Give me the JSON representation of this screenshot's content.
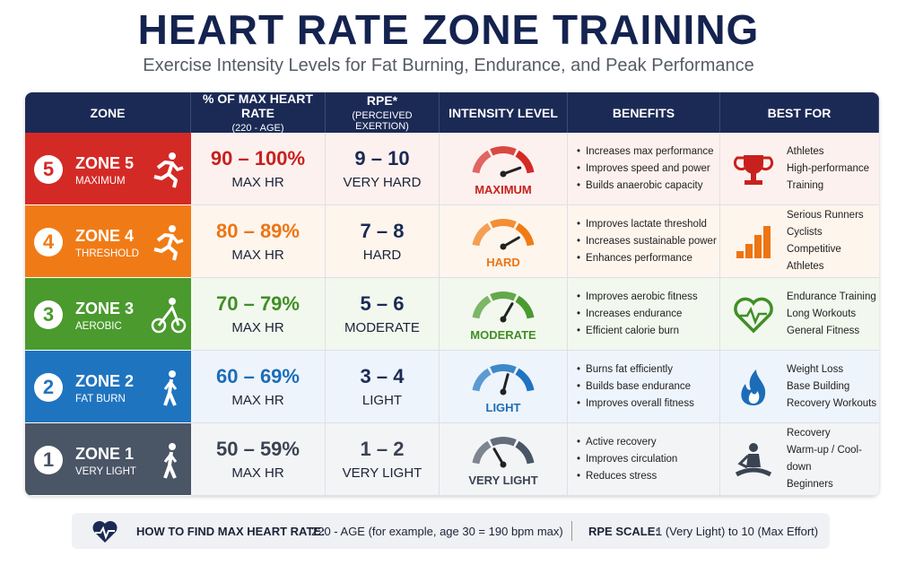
{
  "header": {
    "title": "HEART RATE ZONE TRAINING",
    "subtitle": "Exercise Intensity Levels for Fat Burning, Endurance, and Peak Performance"
  },
  "table": {
    "headers": [
      {
        "title": "ZONE"
      },
      {
        "title": "% OF MAX HEART RATE",
        "sub": "(220 - AGE)"
      },
      {
        "title": "RPE*",
        "sub": "(PERCEIVED EXERTION)"
      },
      {
        "title": "INTENSITY LEVEL"
      },
      {
        "title": "BENEFITS"
      },
      {
        "title": "BEST FOR"
      }
    ],
    "rows": [
      {
        "number": "5",
        "zone": "ZONE 5",
        "label": "MAXIMUM",
        "hr": "90 – 100%",
        "hr_unit": "MAX HR",
        "rpe": "9 – 10",
        "rpe_label": "VERY HARD",
        "intensity": "MAXIMUM",
        "benefits": [
          "Increases max performance",
          "Improves speed and power",
          "Builds anaerobic capacity"
        ],
        "best_for": [
          "Athletes",
          "High-performance",
          "Training"
        ]
      },
      {
        "number": "4",
        "zone": "ZONE 4",
        "label": "THRESHOLD",
        "hr": "80 – 89%",
        "hr_unit": "MAX HR",
        "rpe": "7 – 8",
        "rpe_label": "HARD",
        "intensity": "HARD",
        "benefits": [
          "Improves lactate threshold",
          "Increases sustainable power",
          "Enhances performance"
        ],
        "best_for": [
          "Serious Runners",
          "Cyclists",
          "Competitive Athletes"
        ]
      },
      {
        "number": "3",
        "zone": "ZONE 3",
        "label": "AEROBIC",
        "hr": "70 – 79%",
        "hr_unit": "MAX HR",
        "rpe": "5 – 6",
        "rpe_label": "MODERATE",
        "intensity": "MODERATE",
        "benefits": [
          "Improves aerobic fitness",
          "Increases endurance",
          "Efficient calorie burn"
        ],
        "best_for": [
          "Endurance Training",
          "Long Workouts",
          "General Fitness"
        ]
      },
      {
        "number": "2",
        "zone": "ZONE 2",
        "label": "FAT BURN",
        "hr": "60 – 69%",
        "hr_unit": "MAX HR",
        "rpe": "3 – 4",
        "rpe_label": "LIGHT",
        "intensity": "LIGHT",
        "benefits": [
          "Burns fat efficiently",
          "Builds base endurance",
          "Improves overall fitness"
        ],
        "best_for": [
          "Weight Loss",
          "Base Building",
          "Recovery Workouts"
        ]
      },
      {
        "number": "1",
        "zone": "ZONE 1",
        "label": "VERY LIGHT",
        "hr": "50 – 59%",
        "hr_unit": "MAX HR",
        "rpe": "1 – 2",
        "rpe_label": "VERY LIGHT",
        "intensity": "VERY LIGHT",
        "benefits": [
          "Active recovery",
          "Improves circulation",
          "Reduces stress"
        ],
        "best_for": [
          "Recovery",
          "Warm-up / Cool-down",
          "Beginners"
        ]
      }
    ]
  },
  "footer": {
    "label": "HOW TO FIND MAX HEART RATE:",
    "text": "220 - AGE (for example, age 30 = 190 bpm max)",
    "rpe_label": "RPE SCALE:",
    "rpe_text": "1 (Very Light) to 10 (Max Effort)"
  }
}
